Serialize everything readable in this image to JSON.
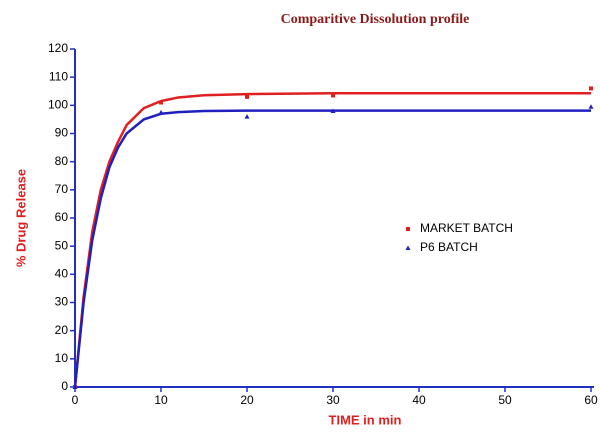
{
  "chart_data": {
    "type": "scatter",
    "title": "Comparitive Dissolution profile",
    "x_label": "TIME  in min",
    "y_label": "% Drug Release",
    "xlim": [
      0,
      60
    ],
    "xticks": [
      0,
      10,
      20,
      30,
      40,
      50,
      60
    ],
    "ylim": [
      0,
      120
    ],
    "yticks": [
      0,
      10,
      20,
      30,
      40,
      50,
      60,
      70,
      80,
      90,
      100,
      110,
      120
    ],
    "legend": "right",
    "series": [
      {
        "name": "MARKET BATCH",
        "color": "#e02020",
        "marker": "square",
        "x": [
          0,
          10,
          20,
          30,
          60
        ],
        "values": [
          0,
          101,
          103,
          103.5,
          106
        ],
        "fit": {
          "x": [
            0,
            1,
            2,
            3,
            4,
            5,
            6,
            8,
            10,
            12,
            15,
            20,
            30,
            40,
            50,
            60
          ],
          "values": [
            0,
            32,
            55,
            70,
            80,
            87,
            93,
            99,
            101.5,
            102.8,
            103.6,
            104,
            104.3,
            104.3,
            104.3,
            104.3
          ]
        }
      },
      {
        "name": "P6 BATCH",
        "color": "#2020c0",
        "marker": "triangle",
        "x": [
          0,
          10,
          20,
          30,
          60
        ],
        "values": [
          0,
          97.5,
          96,
          98,
          99.5
        ],
        "fit": {
          "x": [
            0,
            1,
            2,
            3,
            4,
            5,
            6,
            8,
            10,
            12,
            15,
            20,
            30,
            40,
            50,
            60
          ],
          "values": [
            0,
            30,
            52,
            67,
            78,
            85,
            90,
            95,
            97,
            97.6,
            98,
            98.1,
            98.1,
            98.1,
            98.1,
            98.1
          ]
        }
      }
    ]
  }
}
